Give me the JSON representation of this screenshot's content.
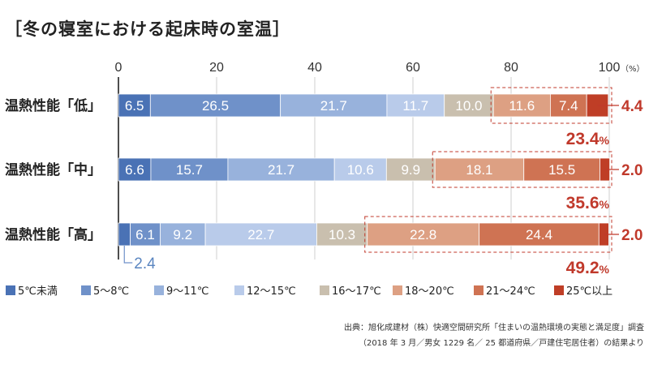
{
  "title": "［冬の寝室における起床時の室温］",
  "chart_data": {
    "type": "bar",
    "orientation": "horizontal",
    "stacked": true,
    "xlim": [
      0,
      100
    ],
    "x_ticks": [
      "0",
      "20",
      "40",
      "60",
      "80",
      "100"
    ],
    "x_unit": "（%）",
    "grid": true,
    "legend_position": "bottom",
    "categories": [
      "温熱性能「低」",
      "温熱性能「中」",
      "温熱性能「高」"
    ],
    "series": [
      {
        "name": "5℃未満",
        "color": "#4a72b5",
        "values": [
          6.5,
          6.6,
          2.4
        ]
      },
      {
        "name": "5～8℃",
        "color": "#6f91c9",
        "values": [
          26.5,
          15.7,
          6.1
        ]
      },
      {
        "name": "9～11℃",
        "color": "#98b2dc",
        "values": [
          21.7,
          21.7,
          9.2
        ]
      },
      {
        "name": "12～15℃",
        "color": "#b9cbea",
        "values": [
          11.7,
          10.6,
          22.7
        ]
      },
      {
        "name": "16～17℃",
        "color": "#c9bfae",
        "values": [
          10.0,
          9.9,
          10.3
        ]
      },
      {
        "name": "18～20℃",
        "color": "#dda083",
        "values": [
          11.6,
          18.1,
          22.8
        ]
      },
      {
        "name": "21～24℃",
        "color": "#cf7353",
        "values": [
          7.4,
          15.5,
          24.4
        ]
      },
      {
        "name": "25℃以上",
        "color": "#bf3e26",
        "values": [
          4.4,
          2.0,
          2.0
        ]
      }
    ],
    "bar_labels": [
      [
        "6.5",
        "26.5",
        "21.7",
        "11.7",
        "10.0",
        "11.6",
        "7.4",
        ""
      ],
      [
        "6.6",
        "15.7",
        "21.7",
        "10.6",
        "9.9",
        "18.1",
        "15.5",
        ""
      ],
      [
        "",
        "6.1",
        "9.2",
        "22.7",
        "10.3",
        "22.8",
        "24.4",
        ""
      ]
    ],
    "outside_labels": [
      "4.4",
      "2.0",
      "2.0"
    ],
    "below_bar_labels": [
      "",
      "",
      "2.4"
    ],
    "highlight_totals": [
      {
        "value": "23.4",
        "unit": "%"
      },
      {
        "value": "35.6",
        "unit": "%"
      },
      {
        "value": "49.2",
        "unit": "%"
      }
    ]
  },
  "source": {
    "line1": "出典：旭化成建材（株）快適空間研究所「住まいの温熱環境の実態と満足度」調査",
    "line2": "（2018 年 3 月／男女 1229 名／ 25 都道府県／戸建住宅居住者）の結果より"
  }
}
